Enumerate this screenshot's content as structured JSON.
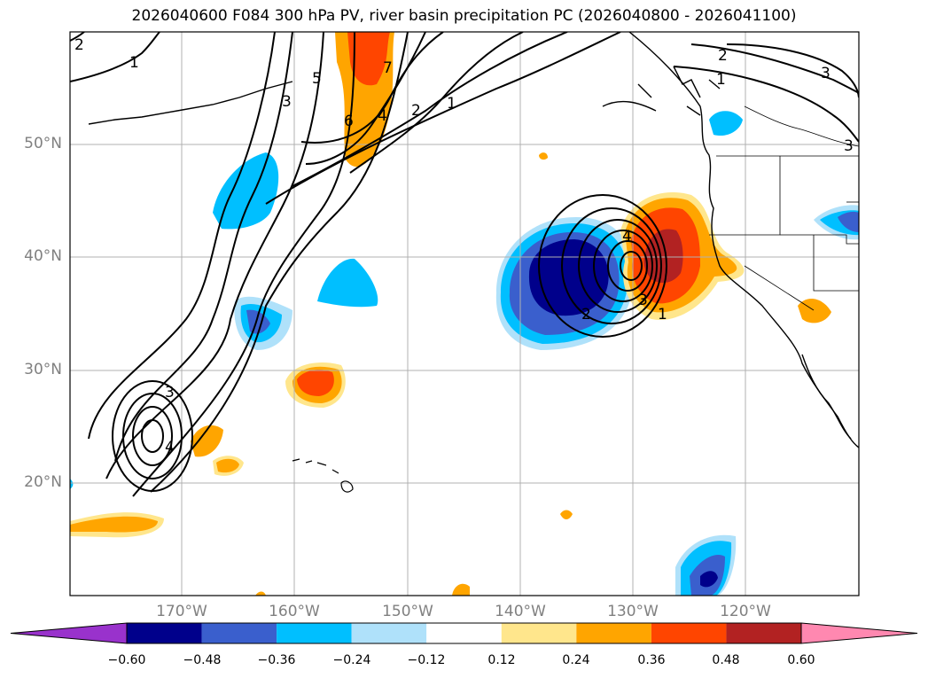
{
  "title": "2026040600 F084 300 hPa PV, river basin precipitation PC (2026040800 - 2026041100)",
  "map": {
    "lat_labels": [
      "50°N",
      "40°N",
      "30°N",
      "20°N"
    ],
    "lon_labels": [
      "170°W",
      "160°W",
      "150°W",
      "140°W",
      "130°W",
      "120°W"
    ],
    "pv_contour_labels": [
      "2",
      "1",
      "3",
      "5",
      "7",
      "6",
      "4",
      "2",
      "1",
      "2",
      "1",
      "3",
      "3",
      "3",
      "4",
      "4",
      "2",
      "3",
      "1"
    ]
  },
  "colorbar": {
    "tick_labels": [
      "−0.60",
      "−0.48",
      "−0.36",
      "−0.24",
      "−0.12",
      "0.12",
      "0.24",
      "0.36",
      "0.48",
      "0.60"
    ],
    "colors": [
      "#9932cc",
      "#00008b",
      "#3a5fcd",
      "#00bfff",
      "#afe1fa",
      "#ffffff",
      "#ffe68c",
      "#ffa500",
      "#ff4500",
      "#b22222",
      "#ff88b0"
    ]
  }
}
